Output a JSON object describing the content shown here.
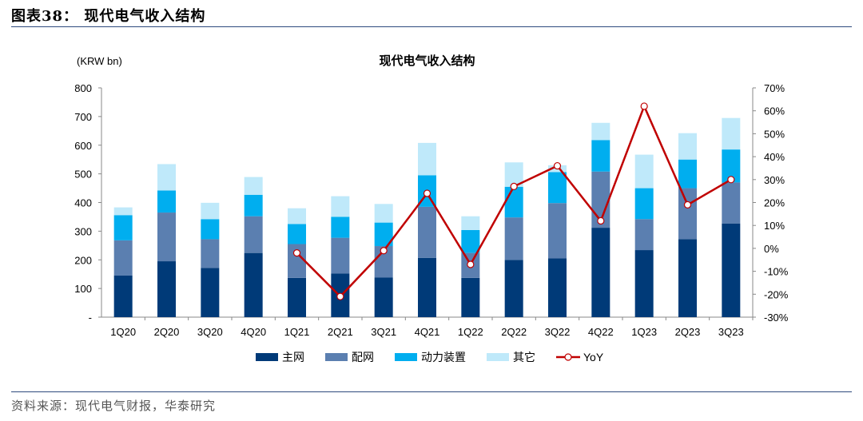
{
  "figure_title": "图表38： 现代电气收入结构",
  "source": "资料来源：现代电气财报，华泰研究",
  "colors": {
    "rule": "#2e4a7d",
    "main_grid": "#003a78",
    "distribution": "#5b7fb0",
    "power_equipment": "#00aeef",
    "other": "#bfe9fa",
    "yoy": "#c00000"
  },
  "chart_data": {
    "type": "bar",
    "stacked": true,
    "title": "现代电气收入结构",
    "unit_label": "(KRW bn)",
    "categories": [
      "1Q20",
      "2Q20",
      "3Q20",
      "4Q20",
      "1Q21",
      "2Q21",
      "3Q21",
      "4Q21",
      "1Q22",
      "2Q22",
      "3Q22",
      "4Q22",
      "1Q23",
      "2Q23",
      "3Q23"
    ],
    "y_ticks": [
      "-",
      "100",
      "200",
      "300",
      "400",
      "500",
      "600",
      "700",
      "800"
    ],
    "ylim": [
      0,
      800
    ],
    "y2_ticks": [
      "-30%",
      "-20%",
      "-10%",
      "0%",
      "10%",
      "20%",
      "30%",
      "40%",
      "50%",
      "60%",
      "70%"
    ],
    "y2lim": [
      -30,
      70
    ],
    "series": [
      {
        "name": "主网",
        "color": "#003a78",
        "values": [
          145,
          195,
          172,
          224,
          137,
          152,
          138,
          207,
          137,
          200,
          205,
          312,
          234,
          272,
          327
        ]
      },
      {
        "name": "配网",
        "color": "#5b7fb0",
        "values": [
          123,
          170,
          100,
          128,
          118,
          125,
          110,
          178,
          87,
          148,
          193,
          196,
          108,
          178,
          143
        ]
      },
      {
        "name": "动力装置",
        "color": "#00aeef",
        "values": [
          88,
          77,
          70,
          75,
          70,
          73,
          82,
          110,
          80,
          107,
          108,
          110,
          108,
          100,
          115
        ]
      },
      {
        "name": "其它",
        "color": "#bfe9fa",
        "values": [
          27,
          92,
          57,
          62,
          55,
          72,
          65,
          113,
          48,
          85,
          24,
          60,
          117,
          92,
          110
        ]
      }
    ],
    "line_series": {
      "name": "YoY",
      "axis": "right",
      "color": "#c00000",
      "values": [
        null,
        null,
        null,
        null,
        -2,
        -21,
        -1,
        24,
        -7,
        27,
        36,
        12,
        62,
        19,
        30
      ]
    },
    "legend": [
      "主网",
      "配网",
      "动力装置",
      "其它",
      "YoY"
    ],
    "legend_position": "bottom",
    "grid": false
  }
}
